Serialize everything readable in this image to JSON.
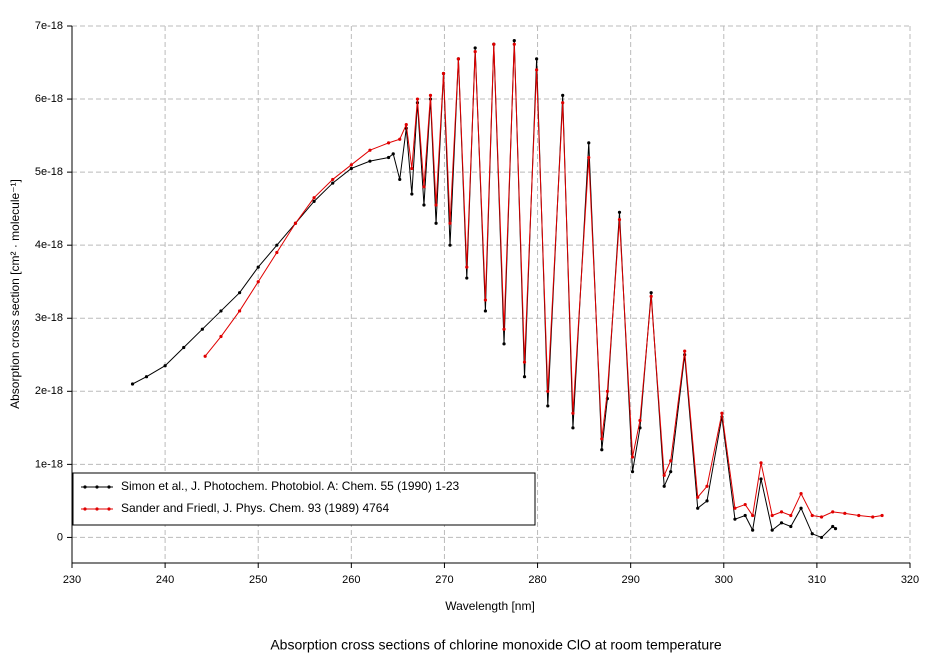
{
  "chart_data": {
    "type": "line",
    "title": "Absorption cross sections of chlorine monoxide ClO at room temperature",
    "x_label": "Wavelength [nm]",
    "y_label": "Absorption cross section [cm² · molecule⁻¹]",
    "xlim": [
      230,
      320
    ],
    "xticks": [
      230,
      240,
      250,
      260,
      270,
      280,
      290,
      300,
      310,
      320
    ],
    "ylim": [
      -3.5e-19,
      7e-18
    ],
    "yticks": [
      0,
      1e-18,
      2e-18,
      3e-18,
      4e-18,
      5e-18,
      6e-18,
      7e-18
    ],
    "grid": true,
    "legend": "lower left",
    "series": [
      {
        "name": "Simon et al., J. Photochem. Photobiol. A: Chem. 55 (1990) 1-23",
        "color": "#000000",
        "x": [
          236.5,
          238,
          240,
          242,
          244,
          246,
          248,
          250,
          252,
          254,
          256,
          258,
          260,
          262,
          264,
          264.5,
          265.2,
          265.9,
          266.5,
          267.1,
          267.8,
          268.5,
          269.1,
          269.9,
          270.6,
          271.5,
          272.4,
          273.3,
          274.4,
          275.3,
          276.4,
          277.5,
          278.6,
          279.9,
          281.1,
          282.7,
          283.8,
          285.5,
          286.9,
          287.5,
          288.8,
          290.2,
          291.0,
          292.2,
          293.6,
          294.3,
          295.8,
          297.2,
          298.2,
          299.8,
          301.2,
          302.3,
          303.1,
          304.0,
          305.2,
          306.2,
          307.2,
          308.3,
          309.5,
          310.5,
          311.7,
          312
        ],
        "values": [
          2.1e-18,
          2.2e-18,
          2.35e-18,
          2.6e-18,
          2.85e-18,
          3.1e-18,
          3.35e-18,
          3.7e-18,
          4e-18,
          4.3e-18,
          4.6e-18,
          4.85e-18,
          5.05e-18,
          5.15e-18,
          5.2e-18,
          5.25e-18,
          4.9e-18,
          5.6e-18,
          4.7e-18,
          5.95e-18,
          4.55e-18,
          6e-18,
          4.3e-18,
          6.35e-18,
          4e-18,
          6.55e-18,
          3.55e-18,
          6.7e-18,
          3.1e-18,
          6.75e-18,
          2.65e-18,
          6.8e-18,
          2.2e-18,
          6.55e-18,
          1.8e-18,
          6.05e-18,
          1.5e-18,
          5.4e-18,
          1.2e-18,
          1.9e-18,
          4.45e-18,
          9e-19,
          1.5e-18,
          3.35e-18,
          7e-19,
          9e-19,
          2.5e-18,
          4e-19,
          5e-19,
          1.65e-18,
          2.5e-19,
          3e-19,
          1e-19,
          8e-19,
          1e-19,
          2e-19,
          1.5e-19,
          4e-19,
          5e-20,
          0,
          1.5e-19,
          1.2e-19
        ]
      },
      {
        "name": "Sander and Friedl, J. Phys. Chem. 93 (1989) 4764",
        "color": "#e00000",
        "x": [
          244.3,
          246,
          248,
          250,
          252,
          254,
          256,
          258,
          260,
          262,
          264,
          265.2,
          265.9,
          266.5,
          267.1,
          267.8,
          268.5,
          269.1,
          269.9,
          270.6,
          271.5,
          272.4,
          273.3,
          274.4,
          275.3,
          276.4,
          277.5,
          278.6,
          279.9,
          281.1,
          282.7,
          283.8,
          285.5,
          286.9,
          287.5,
          288.8,
          290.2,
          291.0,
          292.2,
          293.6,
          294.3,
          295.8,
          297.2,
          298.2,
          299.8,
          301.2,
          302.3,
          303.1,
          304.0,
          305.2,
          306.2,
          307.2,
          308.3,
          309.5,
          310.5,
          311.7,
          313,
          314.5,
          316,
          317
        ],
        "values": [
          2.48e-18,
          2.75e-18,
          3.1e-18,
          3.5e-18,
          3.9e-18,
          4.3e-18,
          4.65e-18,
          4.9e-18,
          5.1e-18,
          5.3e-18,
          5.4e-18,
          5.45e-18,
          5.65e-18,
          5.05e-18,
          6e-18,
          4.8e-18,
          6.05e-18,
          4.55e-18,
          6.35e-18,
          4.3e-18,
          6.55e-18,
          3.7e-18,
          6.65e-18,
          3.25e-18,
          6.75e-18,
          2.85e-18,
          6.75e-18,
          2.4e-18,
          6.4e-18,
          2e-18,
          5.95e-18,
          1.7e-18,
          5.2e-18,
          1.35e-18,
          2e-18,
          4.35e-18,
          1.1e-18,
          1.6e-18,
          3.3e-18,
          8.5e-19,
          1.05e-18,
          2.55e-18,
          5.5e-19,
          7e-19,
          1.7e-18,
          4e-19,
          4.5e-19,
          3e-19,
          1.02e-18,
          3e-19,
          3.5e-19,
          3e-19,
          6e-19,
          3e-19,
          2.8e-19,
          3.5e-19,
          3.3e-19,
          3e-19,
          2.8e-19,
          3e-19
        ]
      }
    ]
  }
}
